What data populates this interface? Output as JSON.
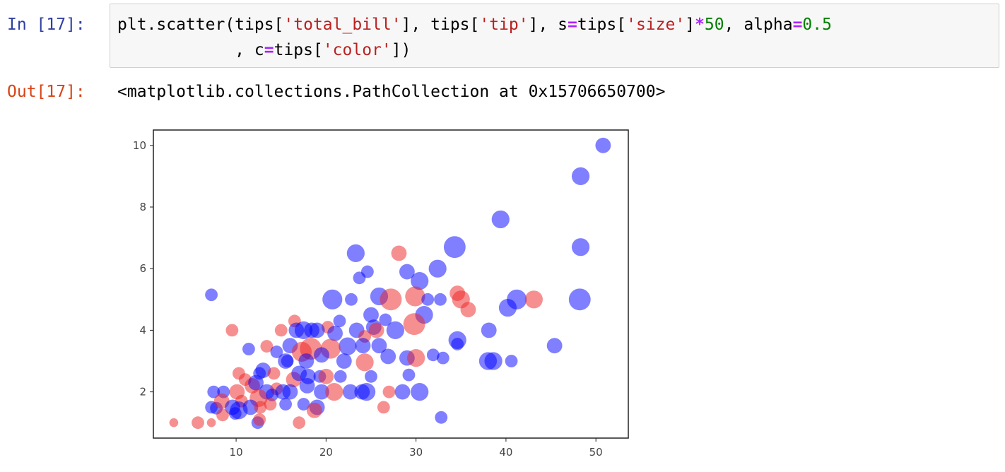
{
  "cells": {
    "input": {
      "prompt": "In [17]:",
      "line1": [
        {
          "t": "plt.scatter(tips[",
          "k": ""
        },
        {
          "t": "'total_bill'",
          "k": "str"
        },
        {
          "t": "], tips[",
          "k": ""
        },
        {
          "t": "'tip'",
          "k": "str"
        },
        {
          "t": "], s",
          "k": ""
        },
        {
          "t": "=",
          "k": "op"
        },
        {
          "t": "tips[",
          "k": ""
        },
        {
          "t": "'size'",
          "k": "str"
        },
        {
          "t": "]",
          "k": ""
        },
        {
          "t": "*",
          "k": "op"
        },
        {
          "t": "50",
          "k": "num"
        },
        {
          "t": ", alpha",
          "k": ""
        },
        {
          "t": "=",
          "k": "op"
        },
        {
          "t": "0.5",
          "k": "num"
        }
      ],
      "line2": [
        {
          "t": "            , c",
          "k": ""
        },
        {
          "t": "=",
          "k": "op"
        },
        {
          "t": "tips[",
          "k": ""
        },
        {
          "t": "'color'",
          "k": "str"
        },
        {
          "t": "])",
          "k": ""
        }
      ]
    },
    "output": {
      "prompt": "Out[17]:",
      "text": "<matplotlib.collections.PathCollection at 0x15706650700>"
    }
  },
  "colors": {
    "blue": "#0000ff",
    "red": "#ee2222",
    "in_prompt": "#303f9f",
    "out_prompt": "#d84315"
  },
  "chart_data": {
    "type": "scatter",
    "alpha": 0.5,
    "grid": false,
    "xlim": [
      0.8,
      53.6
    ],
    "ylim": [
      0.5,
      10.5
    ],
    "xticks": [
      10,
      20,
      30,
      40,
      50
    ],
    "yticks": [
      2,
      4,
      6,
      8,
      10
    ],
    "points": [
      {
        "x": 50.8,
        "y": 10.0,
        "size": 3,
        "color": "blue"
      },
      {
        "x": 48.3,
        "y": 9.0,
        "size": 4,
        "color": "blue"
      },
      {
        "x": 39.4,
        "y": 7.6,
        "size": 4,
        "color": "blue"
      },
      {
        "x": 48.3,
        "y": 6.7,
        "size": 4,
        "color": "blue"
      },
      {
        "x": 34.3,
        "y": 6.7,
        "size": 6,
        "color": "blue"
      },
      {
        "x": 23.3,
        "y": 6.5,
        "size": 4,
        "color": "blue"
      },
      {
        "x": 28.1,
        "y": 6.5,
        "size": 3,
        "color": "red"
      },
      {
        "x": 32.4,
        "y": 6.0,
        "size": 4,
        "color": "blue"
      },
      {
        "x": 29.0,
        "y": 5.9,
        "size": 3,
        "color": "blue"
      },
      {
        "x": 24.6,
        "y": 5.9,
        "size": 2,
        "color": "blue"
      },
      {
        "x": 30.4,
        "y": 5.6,
        "size": 4,
        "color": "blue"
      },
      {
        "x": 23.7,
        "y": 5.7,
        "size": 2,
        "color": "blue"
      },
      {
        "x": 34.6,
        "y": 5.2,
        "size": 3,
        "color": "red"
      },
      {
        "x": 35.0,
        "y": 5.0,
        "size": 4,
        "color": "red"
      },
      {
        "x": 7.25,
        "y": 5.15,
        "size": 2,
        "color": "blue"
      },
      {
        "x": 29.9,
        "y": 5.1,
        "size": 5,
        "color": "red"
      },
      {
        "x": 25.9,
        "y": 5.1,
        "size": 4,
        "color": "blue"
      },
      {
        "x": 27.2,
        "y": 5.0,
        "size": 6,
        "color": "red"
      },
      {
        "x": 20.7,
        "y": 5.0,
        "size": 5,
        "color": "blue"
      },
      {
        "x": 31.3,
        "y": 5.0,
        "size": 2,
        "color": "blue"
      },
      {
        "x": 32.7,
        "y": 5.0,
        "size": 2,
        "color": "blue"
      },
      {
        "x": 41.2,
        "y": 5.0,
        "size": 5,
        "color": "blue"
      },
      {
        "x": 43.1,
        "y": 5.0,
        "size": 4,
        "color": "red"
      },
      {
        "x": 48.2,
        "y": 5.0,
        "size": 6,
        "color": "blue"
      },
      {
        "x": 22.8,
        "y": 5.0,
        "size": 2,
        "color": "blue"
      },
      {
        "x": 35.8,
        "y": 4.67,
        "size": 3,
        "color": "red"
      },
      {
        "x": 40.2,
        "y": 4.73,
        "size": 4,
        "color": "blue"
      },
      {
        "x": 30.9,
        "y": 4.5,
        "size": 4,
        "color": "blue"
      },
      {
        "x": 25.0,
        "y": 4.5,
        "size": 3,
        "color": "blue"
      },
      {
        "x": 21.5,
        "y": 4.3,
        "size": 2,
        "color": "blue"
      },
      {
        "x": 16.5,
        "y": 4.3,
        "size": 2,
        "color": "red"
      },
      {
        "x": 26.6,
        "y": 4.34,
        "size": 2,
        "color": "blue"
      },
      {
        "x": 29.8,
        "y": 4.2,
        "size": 6,
        "color": "red"
      },
      {
        "x": 25.3,
        "y": 4.1,
        "size": 3,
        "color": "blue"
      },
      {
        "x": 25.6,
        "y": 4.0,
        "size": 3,
        "color": "red"
      },
      {
        "x": 27.7,
        "y": 4.0,
        "size": 4,
        "color": "blue"
      },
      {
        "x": 38.1,
        "y": 4.0,
        "size": 3,
        "color": "blue"
      },
      {
        "x": 18.4,
        "y": 4.0,
        "size": 3,
        "color": "blue"
      },
      {
        "x": 20.2,
        "y": 4.1,
        "size": 2,
        "color": "red"
      },
      {
        "x": 15.0,
        "y": 4.0,
        "size": 2,
        "color": "red"
      },
      {
        "x": 9.55,
        "y": 4.0,
        "size": 2,
        "color": "red"
      },
      {
        "x": 16.7,
        "y": 4.0,
        "size": 3,
        "color": "blue"
      },
      {
        "x": 17.5,
        "y": 4.0,
        "size": 4,
        "color": "blue"
      },
      {
        "x": 19.0,
        "y": 4.0,
        "size": 3,
        "color": "blue"
      },
      {
        "x": 23.4,
        "y": 4.0,
        "size": 3,
        "color": "blue"
      },
      {
        "x": 21.0,
        "y": 3.9,
        "size": 3,
        "color": "blue"
      },
      {
        "x": 24.3,
        "y": 3.8,
        "size": 2,
        "color": "red"
      },
      {
        "x": 34.6,
        "y": 3.68,
        "size": 4,
        "color": "blue"
      },
      {
        "x": 34.6,
        "y": 3.55,
        "size": 2,
        "color": "blue"
      },
      {
        "x": 45.4,
        "y": 3.5,
        "size": 3,
        "color": "blue"
      },
      {
        "x": 24.1,
        "y": 3.5,
        "size": 3,
        "color": "blue"
      },
      {
        "x": 22.4,
        "y": 3.48,
        "size": 4,
        "color": "blue"
      },
      {
        "x": 11.4,
        "y": 3.39,
        "size": 2,
        "color": "blue"
      },
      {
        "x": 13.4,
        "y": 3.48,
        "size": 2,
        "color": "red"
      },
      {
        "x": 18.3,
        "y": 3.4,
        "size": 6,
        "color": "red"
      },
      {
        "x": 16.0,
        "y": 3.5,
        "size": 3,
        "color": "blue"
      },
      {
        "x": 14.5,
        "y": 3.3,
        "size": 2,
        "color": "blue"
      },
      {
        "x": 17.3,
        "y": 3.3,
        "size": 5,
        "color": "red"
      },
      {
        "x": 20.5,
        "y": 3.4,
        "size": 5,
        "color": "red"
      },
      {
        "x": 25.9,
        "y": 3.5,
        "size": 3,
        "color": "blue"
      },
      {
        "x": 19.5,
        "y": 3.2,
        "size": 3,
        "color": "blue"
      },
      {
        "x": 31.9,
        "y": 3.2,
        "size": 2,
        "color": "blue"
      },
      {
        "x": 33.0,
        "y": 3.1,
        "size": 2,
        "color": "blue"
      },
      {
        "x": 26.9,
        "y": 3.15,
        "size": 3,
        "color": "blue"
      },
      {
        "x": 29.0,
        "y": 3.1,
        "size": 3,
        "color": "blue"
      },
      {
        "x": 30.0,
        "y": 3.1,
        "size": 4,
        "color": "red"
      },
      {
        "x": 38.0,
        "y": 3.0,
        "size": 4,
        "color": "blue"
      },
      {
        "x": 38.6,
        "y": 3.0,
        "size": 4,
        "color": "blue"
      },
      {
        "x": 40.6,
        "y": 3.0,
        "size": 2,
        "color": "blue"
      },
      {
        "x": 15.7,
        "y": 3.0,
        "size": 2,
        "color": "blue"
      },
      {
        "x": 15.5,
        "y": 3.0,
        "size": 3,
        "color": "blue"
      },
      {
        "x": 17.8,
        "y": 3.0,
        "size": 3,
        "color": "blue"
      },
      {
        "x": 22.0,
        "y": 3.0,
        "size": 3,
        "color": "blue"
      },
      {
        "x": 24.3,
        "y": 2.96,
        "size": 4,
        "color": "red"
      },
      {
        "x": 12.6,
        "y": 2.6,
        "size": 2,
        "color": "blue"
      },
      {
        "x": 13.0,
        "y": 2.7,
        "size": 3,
        "color": "blue"
      },
      {
        "x": 10.3,
        "y": 2.6,
        "size": 2,
        "color": "red"
      },
      {
        "x": 11.0,
        "y": 2.4,
        "size": 2,
        "color": "red"
      },
      {
        "x": 14.2,
        "y": 2.6,
        "size": 2,
        "color": "red"
      },
      {
        "x": 16.4,
        "y": 2.4,
        "size": 3,
        "color": "red"
      },
      {
        "x": 17.0,
        "y": 2.6,
        "size": 3,
        "color": "blue"
      },
      {
        "x": 18.0,
        "y": 2.5,
        "size": 3,
        "color": "blue"
      },
      {
        "x": 19.3,
        "y": 2.5,
        "size": 2,
        "color": "blue"
      },
      {
        "x": 20.0,
        "y": 2.5,
        "size": 3,
        "color": "red"
      },
      {
        "x": 21.6,
        "y": 2.5,
        "size": 2,
        "color": "blue"
      },
      {
        "x": 25.0,
        "y": 2.5,
        "size": 2,
        "color": "blue"
      },
      {
        "x": 29.2,
        "y": 2.55,
        "size": 2,
        "color": "blue"
      },
      {
        "x": 11.8,
        "y": 2.2,
        "size": 3,
        "color": "red"
      },
      {
        "x": 12.2,
        "y": 2.3,
        "size": 3,
        "color": "blue"
      },
      {
        "x": 13.4,
        "y": 2.0,
        "size": 3,
        "color": "blue"
      },
      {
        "x": 14.5,
        "y": 2.1,
        "size": 2,
        "color": "red"
      },
      {
        "x": 15.2,
        "y": 2.0,
        "size": 3,
        "color": "blue"
      },
      {
        "x": 16.0,
        "y": 2.0,
        "size": 3,
        "color": "blue"
      },
      {
        "x": 17.9,
        "y": 2.2,
        "size": 3,
        "color": "blue"
      },
      {
        "x": 19.5,
        "y": 2.0,
        "size": 3,
        "color": "blue"
      },
      {
        "x": 22.7,
        "y": 2.0,
        "size": 3,
        "color": "blue"
      },
      {
        "x": 24.0,
        "y": 2.0,
        "size": 3,
        "color": "blue"
      },
      {
        "x": 24.5,
        "y": 2.0,
        "size": 4,
        "color": "blue"
      },
      {
        "x": 27.0,
        "y": 2.0,
        "size": 2,
        "color": "red"
      },
      {
        "x": 28.5,
        "y": 2.0,
        "size": 3,
        "color": "blue"
      },
      {
        "x": 30.4,
        "y": 2.0,
        "size": 4,
        "color": "blue"
      },
      {
        "x": 7.5,
        "y": 2.0,
        "size": 2,
        "color": "blue"
      },
      {
        "x": 8.6,
        "y": 2.0,
        "size": 2,
        "color": "blue"
      },
      {
        "x": 10.1,
        "y": 2.0,
        "size": 3,
        "color": "red"
      },
      {
        "x": 10.6,
        "y": 1.7,
        "size": 2,
        "color": "red"
      },
      {
        "x": 12.5,
        "y": 1.8,
        "size": 4,
        "color": "red"
      },
      {
        "x": 14.0,
        "y": 1.9,
        "size": 2,
        "color": "blue"
      },
      {
        "x": 15.5,
        "y": 1.6,
        "size": 2,
        "color": "blue"
      },
      {
        "x": 17.5,
        "y": 1.6,
        "size": 2,
        "color": "blue"
      },
      {
        "x": 19.0,
        "y": 1.5,
        "size": 3,
        "color": "blue"
      },
      {
        "x": 20.9,
        "y": 2.0,
        "size": 4,
        "color": "red"
      },
      {
        "x": 7.25,
        "y": 1.5,
        "size": 2,
        "color": "blue"
      },
      {
        "x": 7.8,
        "y": 1.47,
        "size": 2,
        "color": "blue"
      },
      {
        "x": 8.4,
        "y": 1.7,
        "size": 3,
        "color": "red"
      },
      {
        "x": 9.6,
        "y": 1.5,
        "size": 3,
        "color": "blue"
      },
      {
        "x": 10.3,
        "y": 1.4,
        "size": 4,
        "color": "blue"
      },
      {
        "x": 11.6,
        "y": 1.5,
        "size": 3,
        "color": "blue"
      },
      {
        "x": 12.7,
        "y": 1.5,
        "size": 2,
        "color": "red"
      },
      {
        "x": 13.8,
        "y": 1.6,
        "size": 2,
        "color": "red"
      },
      {
        "x": 26.4,
        "y": 1.5,
        "size": 2,
        "color": "red"
      },
      {
        "x": 8.5,
        "y": 1.25,
        "size": 2,
        "color": "red"
      },
      {
        "x": 9.9,
        "y": 1.3,
        "size": 2,
        "color": "blue"
      },
      {
        "x": 18.7,
        "y": 1.4,
        "size": 3,
        "color": "red"
      },
      {
        "x": 32.8,
        "y": 1.17,
        "size": 2,
        "color": "blue"
      },
      {
        "x": 3.07,
        "y": 1.0,
        "size": 1,
        "color": "red"
      },
      {
        "x": 5.75,
        "y": 1.0,
        "size": 2,
        "color": "red"
      },
      {
        "x": 7.25,
        "y": 1.0,
        "size": 1,
        "color": "red"
      },
      {
        "x": 12.4,
        "y": 1.0,
        "size": 2,
        "color": "blue"
      },
      {
        "x": 12.6,
        "y": 1.1,
        "size": 2,
        "color": "red"
      },
      {
        "x": 17.0,
        "y": 1.0,
        "size": 2,
        "color": "red"
      }
    ]
  }
}
